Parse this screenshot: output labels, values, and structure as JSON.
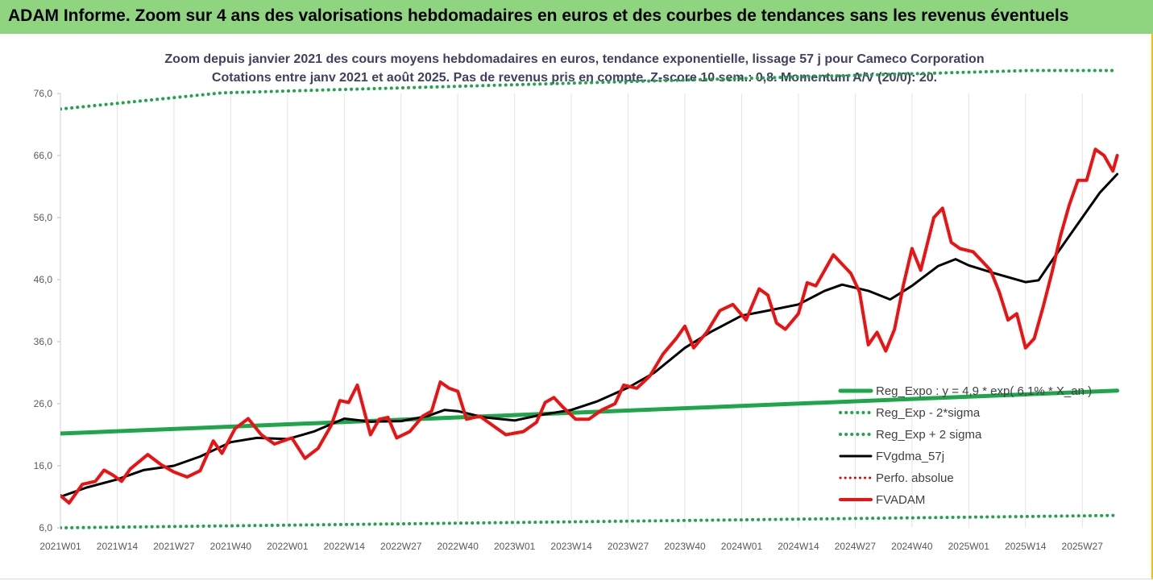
{
  "banner": {
    "title": "ADAM Informe. Zoom sur 4 ans des valorisations hebdomadaires en euros et des courbes de tendances sans les revenus éventuels"
  },
  "colors": {
    "banner_bg": "#8fd47f",
    "frame_accent": "#f2c200",
    "reg_expo": "#1fa64b",
    "fvgdma": "#000000",
    "perfo": "#e00000",
    "fvadam": "#ee1111"
  },
  "chart_data": {
    "type": "line",
    "title_lines": [
      "Zoom depuis janvier 2021 des cours moyens hebdomadaires en euros, tendance exponentielle, lissage 57 j pour Cameco Corporation",
      "Cotations entre janv 2021 et août 2025. Pas de revenus pris en compte. Z-score 10 sem.: 0,8. Momentum A/V (20/0): 20."
    ],
    "x_tick_labels": [
      "2021W01",
      "2021W14",
      "2021W27",
      "2021W40",
      "2022W01",
      "2022W14",
      "2022W27",
      "2022W40",
      "2023W01",
      "2023W14",
      "2023W27",
      "2023W40",
      "2024W01",
      "2024W14",
      "2024W27",
      "2024W40",
      "2025W01",
      "2025W14",
      "2025W27"
    ],
    "y_tick_labels": [
      "6,0",
      "16,0",
      "26,0",
      "36,0",
      "46,0",
      "56,0",
      "66,0",
      "76,0"
    ],
    "ylim": [
      6,
      76
    ],
    "grid": "vertical",
    "legend_position": "right",
    "series": [
      {
        "name": "Reg_Expo : y = 4,9 * exp( 6,1% * X_an )",
        "style": "solid",
        "color": "#1fa64b",
        "width": 5,
        "points": [
          [
            "2021W01",
            21.2
          ],
          [
            "2025W35",
            28.1
          ]
        ]
      },
      {
        "name": "Reg_Exp - 2*sigma",
        "style": "dotted",
        "color": "#1fa64b",
        "width": 4,
        "points": [
          [
            "2021W01",
            6.0
          ],
          [
            "2025W35",
            8.0
          ]
        ]
      },
      {
        "name": "Reg_Exp + 2 sigma",
        "style": "dotted",
        "color": "#1fa64b",
        "width": 4,
        "points": [
          [
            "2021W01",
            73.5
          ],
          [
            "2021W38",
            76.1
          ],
          [
            "2025W15",
            79.7
          ],
          [
            "2025W35",
            79.7
          ]
        ]
      },
      {
        "name": "FVgdma_57j",
        "style": "solid",
        "color": "#000000",
        "width": 3,
        "points": [
          [
            "2021W01",
            11.0
          ],
          [
            "2021W07",
            12.5
          ],
          [
            "2021W14",
            13.8
          ],
          [
            "2021W20",
            15.3
          ],
          [
            "2021W27",
            16.0
          ],
          [
            "2021W33",
            17.5
          ],
          [
            "2021W40",
            19.8
          ],
          [
            "2021W46",
            20.5
          ],
          [
            "2022W01",
            20.3
          ],
          [
            "2022W07",
            21.5
          ],
          [
            "2022W14",
            23.6
          ],
          [
            "2022W20",
            23.1
          ],
          [
            "2022W27",
            23.2
          ],
          [
            "2022W33",
            24.0
          ],
          [
            "2022W37",
            25.0
          ],
          [
            "2022W40",
            24.8
          ],
          [
            "2022W46",
            23.8
          ],
          [
            "2023W01",
            23.3
          ],
          [
            "2023W07",
            24.2
          ],
          [
            "2023W14",
            25.0
          ],
          [
            "2023W20",
            26.4
          ],
          [
            "2023W27",
            28.6
          ],
          [
            "2023W33",
            31.0
          ],
          [
            "2023W40",
            35.0
          ],
          [
            "2023W46",
            37.6
          ],
          [
            "2024W01",
            40.2
          ],
          [
            "2024W07",
            41.0
          ],
          [
            "2024W14",
            42.0
          ],
          [
            "2024W20",
            44.2
          ],
          [
            "2024W24",
            45.2
          ],
          [
            "2024W30",
            44.2
          ],
          [
            "2024W35",
            42.8
          ],
          [
            "2024W40",
            45.0
          ],
          [
            "2024W46",
            48.2
          ],
          [
            "2024W50",
            49.3
          ],
          [
            "2025W01",
            48.3
          ],
          [
            "2025W07",
            47.0
          ],
          [
            "2025W14",
            45.6
          ],
          [
            "2025W17",
            45.9
          ],
          [
            "2025W20",
            49.0
          ],
          [
            "2025W27",
            56.0
          ],
          [
            "2025W31",
            60.0
          ],
          [
            "2025W35",
            63.0
          ]
        ]
      },
      {
        "name": "Perfo. absolue",
        "style": "dotted",
        "color": "#e00000",
        "width": 3,
        "points": []
      },
      {
        "name": "FVADAM",
        "style": "solid",
        "color": "#ee1111",
        "width": 4,
        "points": [
          [
            "2021W01",
            11.2
          ],
          [
            "2021W03",
            10.0
          ],
          [
            "2021W06",
            13.0
          ],
          [
            "2021W09",
            13.5
          ],
          [
            "2021W11",
            15.3
          ],
          [
            "2021W13",
            14.5
          ],
          [
            "2021W15",
            13.5
          ],
          [
            "2021W17",
            15.5
          ],
          [
            "2021W21",
            17.8
          ],
          [
            "2021W24",
            16.2
          ],
          [
            "2021W27",
            15.0
          ],
          [
            "2021W30",
            14.2
          ],
          [
            "2021W33",
            15.2
          ],
          [
            "2021W36",
            20.0
          ],
          [
            "2021W38",
            18.0
          ],
          [
            "2021W41",
            22.0
          ],
          [
            "2021W44",
            23.6
          ],
          [
            "2021W47",
            21.0
          ],
          [
            "2021W50",
            19.5
          ],
          [
            "2022W02",
            20.5
          ],
          [
            "2022W05",
            17.2
          ],
          [
            "2022W08",
            18.8
          ],
          [
            "2022W11",
            22.5
          ],
          [
            "2022W13",
            26.5
          ],
          [
            "2022W15",
            26.2
          ],
          [
            "2022W17",
            29.0
          ],
          [
            "2022W20",
            21.0
          ],
          [
            "2022W22",
            23.5
          ],
          [
            "2022W24",
            23.8
          ],
          [
            "2022W26",
            20.5
          ],
          [
            "2022W29",
            21.5
          ],
          [
            "2022W32",
            24.0
          ],
          [
            "2022W34",
            24.8
          ],
          [
            "2022W36",
            29.5
          ],
          [
            "2022W38",
            28.5
          ],
          [
            "2022W40",
            28.0
          ],
          [
            "2022W42",
            23.5
          ],
          [
            "2022W45",
            24.0
          ],
          [
            "2022W48",
            22.5
          ],
          [
            "2022W51",
            21.0
          ],
          [
            "2023W03",
            21.5
          ],
          [
            "2023W06",
            23.0
          ],
          [
            "2023W08",
            26.2
          ],
          [
            "2023W10",
            27.0
          ],
          [
            "2023W12",
            25.5
          ],
          [
            "2023W15",
            23.5
          ],
          [
            "2023W18",
            23.5
          ],
          [
            "2023W21",
            25.0
          ],
          [
            "2023W24",
            26.0
          ],
          [
            "2023W26",
            29.0
          ],
          [
            "2023W29",
            28.5
          ],
          [
            "2023W32",
            30.5
          ],
          [
            "2023W35",
            34.0
          ],
          [
            "2023W38",
            36.5
          ],
          [
            "2023W40",
            38.5
          ],
          [
            "2023W42",
            35.0
          ],
          [
            "2023W45",
            37.5
          ],
          [
            "2023W48",
            41.0
          ],
          [
            "2023W51",
            42.0
          ],
          [
            "2024W02",
            39.5
          ],
          [
            "2024W05",
            44.5
          ],
          [
            "2024W07",
            43.5
          ],
          [
            "2024W09",
            39.0
          ],
          [
            "2024W11",
            38.0
          ],
          [
            "2024W14",
            40.5
          ],
          [
            "2024W16",
            45.5
          ],
          [
            "2024W18",
            45.0
          ],
          [
            "2024W20",
            47.5
          ],
          [
            "2024W22",
            50.0
          ],
          [
            "2024W24",
            48.5
          ],
          [
            "2024W26",
            47.0
          ],
          [
            "2024W28",
            44.0
          ],
          [
            "2024W30",
            35.5
          ],
          [
            "2024W32",
            37.5
          ],
          [
            "2024W34",
            34.5
          ],
          [
            "2024W36",
            38.0
          ],
          [
            "2024W38",
            45.0
          ],
          [
            "2024W40",
            51.0
          ],
          [
            "2024W42",
            47.5
          ],
          [
            "2024W45",
            56.0
          ],
          [
            "2024W47",
            57.5
          ],
          [
            "2024W49",
            52.0
          ],
          [
            "2024W51",
            51.0
          ],
          [
            "2025W02",
            50.5
          ],
          [
            "2025W04",
            49.0
          ],
          [
            "2025W06",
            47.5
          ],
          [
            "2025W08",
            44.0
          ],
          [
            "2025W10",
            39.5
          ],
          [
            "2025W12",
            40.5
          ],
          [
            "2025W14",
            35.0
          ],
          [
            "2025W16",
            36.5
          ],
          [
            "2025W18",
            41.5
          ],
          [
            "2025W20",
            47.0
          ],
          [
            "2025W22",
            53.0
          ],
          [
            "2025W24",
            58.0
          ],
          [
            "2025W26",
            62.0
          ],
          [
            "2025W28",
            62.0
          ],
          [
            "2025W30",
            67.0
          ],
          [
            "2025W32",
            66.0
          ],
          [
            "2025W34",
            63.5
          ],
          [
            "2025W35",
            66.0
          ]
        ]
      }
    ]
  }
}
